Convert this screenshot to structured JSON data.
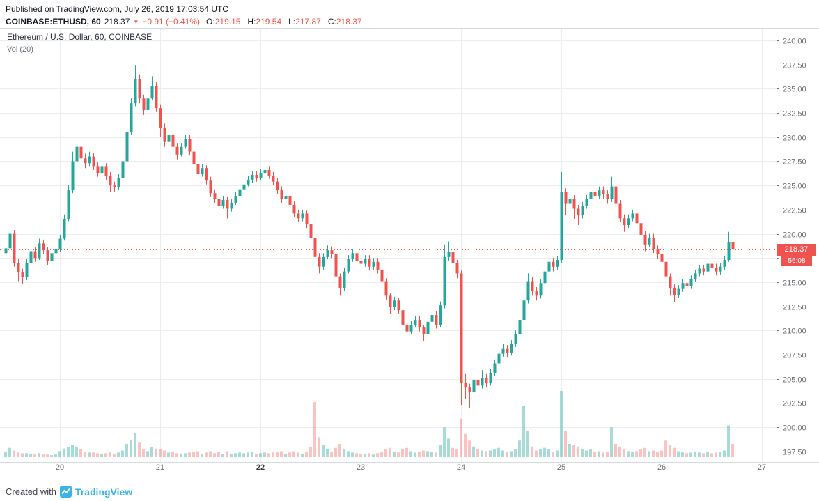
{
  "page": {
    "published_line": "Published on TradingView.com, July 26, 2019 17:03:54 UTC",
    "footer_created_with": "Created with",
    "footer_brand": "TradingView"
  },
  "symbol_bar": {
    "symbol": "COINBASE:ETHUSD, 60",
    "last": "218.37",
    "direction_icon": "▼",
    "change": "−0.91 (−0.41%)",
    "open_label": "O:",
    "open": "219.15",
    "high_label": "H:",
    "high": "219.54",
    "low_label": "L:",
    "low": "217.87",
    "close_label": "C:",
    "close": "218.37"
  },
  "legend": {
    "series_title": "Ethereum / U.S. Dollar, 60, COINBASE",
    "indicator_label": "Vol (20)"
  },
  "axis": {
    "price_badge": "218.37",
    "countdown_badge": "56:08"
  },
  "colors": {
    "up": "#26a69a",
    "down": "#ef5350",
    "volume_up": "rgba(38,166,154,0.40)",
    "volume_down": "rgba(239,83,80,0.35)",
    "grid": "#ebedf0",
    "frame": "#d6d9dd",
    "axis_text": "#6a6e77",
    "axis_text_bold": "#35383f",
    "badge_bg": "#ef5350",
    "brand_blue": "#3bb3e4"
  },
  "chart_data": {
    "type": "candlestick",
    "title": "Ethereum / U.S. Dollar, 60, COINBASE",
    "exchange": "COINBASE",
    "symbol": "ETHUSD",
    "interval_minutes": 60,
    "volume_indicator": "Vol (20)",
    "last_price": 218.37,
    "countdown": "56:08",
    "y_axis": {
      "range": [
        196.4,
        241.3
      ],
      "ticks": [
        197.5,
        200,
        202.5,
        205,
        207.5,
        210,
        212.5,
        215,
        217.5,
        220,
        222.5,
        225,
        227.5,
        230,
        232.5,
        235,
        237.5,
        240
      ]
    },
    "x_labels": [
      {
        "label": "20",
        "candle_index": 13
      },
      {
        "label": "21",
        "candle_index": 37
      },
      {
        "label": "22",
        "candle_index": 61,
        "bold": true
      },
      {
        "label": "23",
        "candle_index": 85
      },
      {
        "label": "24",
        "candle_index": 109
      },
      {
        "label": "25",
        "candle_index": 133
      },
      {
        "label": "26",
        "candle_index": 157
      },
      {
        "label": "27",
        "candle_index": 181
      }
    ],
    "candle_format": [
      "open",
      "high",
      "low",
      "close",
      "volume_pct"
    ],
    "candles": [
      [
        218.0,
        219.0,
        217.6,
        218.5,
        8
      ],
      [
        218.5,
        224.0,
        218.2,
        220.0,
        14
      ],
      [
        220.0,
        220.4,
        216.6,
        217.0,
        10
      ],
      [
        217.0,
        217.4,
        215.1,
        216.0,
        7
      ],
      [
        216.0,
        216.4,
        214.8,
        215.5,
        6
      ],
      [
        215.5,
        217.4,
        215.2,
        217.0,
        6
      ],
      [
        217.0,
        218.7,
        216.8,
        218.2,
        5
      ],
      [
        218.2,
        218.6,
        217.1,
        217.5,
        4
      ],
      [
        217.5,
        219.5,
        217.3,
        219.0,
        6
      ],
      [
        219.0,
        219.4,
        217.9,
        218.3,
        4
      ],
      [
        218.3,
        218.6,
        216.8,
        217.2,
        4
      ],
      [
        217.2,
        218.4,
        217.0,
        218.0,
        3
      ],
      [
        218.0,
        218.9,
        217.7,
        218.4,
        4
      ],
      [
        218.4,
        219.9,
        218.1,
        219.5,
        9
      ],
      [
        219.5,
        222.0,
        219.3,
        221.5,
        13
      ],
      [
        221.5,
        225.0,
        221.3,
        224.5,
        15
      ],
      [
        224.5,
        228.5,
        224.2,
        227.5,
        18
      ],
      [
        227.5,
        230.2,
        227.2,
        229.0,
        16
      ],
      [
        229.0,
        229.6,
        227.3,
        227.8,
        12
      ],
      [
        227.8,
        228.3,
        226.8,
        227.3,
        8
      ],
      [
        227.3,
        228.5,
        227.0,
        228.0,
        7
      ],
      [
        228.0,
        228.4,
        226.6,
        227.0,
        7
      ],
      [
        227.0,
        227.4,
        225.9,
        226.3,
        6
      ],
      [
        226.3,
        227.5,
        226.0,
        227.0,
        5
      ],
      [
        227.0,
        227.3,
        225.6,
        226.0,
        6
      ],
      [
        226.0,
        226.4,
        224.3,
        225.0,
        8
      ],
      [
        225.0,
        225.4,
        224.3,
        224.8,
        5
      ],
      [
        224.8,
        226.2,
        224.5,
        225.8,
        7
      ],
      [
        225.8,
        228.0,
        225.6,
        227.5,
        10
      ],
      [
        227.5,
        231.0,
        227.3,
        230.5,
        20
      ],
      [
        230.5,
        234.0,
        230.2,
        233.5,
        26
      ],
      [
        233.5,
        237.4,
        233.2,
        236.0,
        36
      ],
      [
        236.0,
        236.5,
        233.5,
        234.0,
        22
      ],
      [
        234.0,
        234.4,
        232.3,
        232.8,
        12
      ],
      [
        232.8,
        234.5,
        232.5,
        234.0,
        9
      ],
      [
        234.0,
        236.3,
        233.8,
        235.3,
        15
      ],
      [
        235.3,
        235.7,
        232.6,
        233.0,
        13
      ],
      [
        233.0,
        233.4,
        230.0,
        231.0,
        12
      ],
      [
        231.0,
        231.4,
        229.0,
        229.5,
        10
      ],
      [
        229.5,
        230.7,
        229.2,
        230.2,
        7
      ],
      [
        230.2,
        230.6,
        228.2,
        229.0,
        8
      ],
      [
        229.0,
        229.4,
        227.7,
        228.2,
        6
      ],
      [
        228.2,
        229.4,
        228.0,
        229.0,
        5
      ],
      [
        229.0,
        230.2,
        228.8,
        229.8,
        6
      ],
      [
        229.8,
        230.2,
        228.1,
        228.5,
        7
      ],
      [
        228.5,
        228.9,
        226.8,
        227.2,
        8
      ],
      [
        227.2,
        227.6,
        225.5,
        226.2,
        9
      ],
      [
        226.2,
        227.2,
        225.9,
        226.8,
        5
      ],
      [
        226.8,
        227.1,
        225.1,
        225.5,
        7
      ],
      [
        225.5,
        225.9,
        223.8,
        224.2,
        9
      ],
      [
        224.2,
        224.6,
        223.2,
        223.6,
        6
      ],
      [
        223.6,
        224.0,
        222.2,
        222.9,
        8
      ],
      [
        222.9,
        223.9,
        222.6,
        223.5,
        5
      ],
      [
        223.5,
        223.8,
        221.6,
        222.6,
        9
      ],
      [
        222.6,
        223.6,
        222.3,
        223.2,
        5
      ],
      [
        223.2,
        224.3,
        223.0,
        223.9,
        6
      ],
      [
        223.9,
        225.0,
        223.7,
        224.6,
        7
      ],
      [
        224.6,
        225.5,
        224.3,
        225.1,
        6
      ],
      [
        225.1,
        226.0,
        224.9,
        225.6,
        7
      ],
      [
        225.6,
        226.5,
        225.3,
        226.1,
        8
      ],
      [
        226.1,
        226.5,
        225.4,
        225.8,
        5
      ],
      [
        225.8,
        226.7,
        225.5,
        226.3,
        6
      ],
      [
        226.3,
        227.2,
        226.1,
        226.6,
        7
      ],
      [
        226.6,
        227.0,
        225.7,
        226.0,
        6
      ],
      [
        226.0,
        226.4,
        225.0,
        225.4,
        7
      ],
      [
        225.4,
        225.8,
        224.1,
        224.5,
        8
      ],
      [
        224.5,
        224.9,
        223.2,
        223.6,
        9
      ],
      [
        223.6,
        224.3,
        223.3,
        223.9,
        5
      ],
      [
        223.9,
        224.2,
        222.6,
        223.0,
        7
      ],
      [
        223.0,
        223.4,
        221.7,
        222.1,
        9
      ],
      [
        222.1,
        222.5,
        221.2,
        221.6,
        7
      ],
      [
        221.6,
        222.5,
        221.3,
        222.1,
        5
      ],
      [
        222.1,
        222.4,
        220.6,
        221.0,
        8
      ],
      [
        221.0,
        221.4,
        219.1,
        219.6,
        15
      ],
      [
        219.6,
        219.9,
        216.5,
        217.6,
        83
      ],
      [
        217.6,
        218.0,
        215.9,
        216.6,
        30
      ],
      [
        216.6,
        218.0,
        216.3,
        217.6,
        18
      ],
      [
        217.6,
        218.8,
        217.4,
        218.3,
        12
      ],
      [
        218.3,
        218.7,
        217.5,
        217.9,
        8
      ],
      [
        217.9,
        218.2,
        215.2,
        215.6,
        14
      ],
      [
        215.6,
        215.9,
        213.6,
        214.4,
        20
      ],
      [
        214.4,
        216.5,
        214.1,
        216.1,
        12
      ],
      [
        216.1,
        217.8,
        215.9,
        217.4,
        9
      ],
      [
        217.4,
        218.4,
        217.1,
        218.0,
        7
      ],
      [
        218.0,
        218.4,
        216.9,
        217.2,
        6
      ],
      [
        217.2,
        217.6,
        216.5,
        216.9,
        5
      ],
      [
        216.9,
        217.8,
        216.6,
        217.4,
        5
      ],
      [
        217.4,
        217.8,
        216.2,
        216.6,
        6
      ],
      [
        216.6,
        217.5,
        216.3,
        217.1,
        4
      ],
      [
        217.1,
        217.5,
        215.9,
        216.3,
        6
      ],
      [
        216.3,
        216.6,
        214.7,
        215.1,
        8
      ],
      [
        215.1,
        215.4,
        213.2,
        213.6,
        12
      ],
      [
        213.6,
        213.9,
        211.7,
        212.4,
        14
      ],
      [
        212.4,
        213.5,
        212.1,
        213.1,
        8
      ],
      [
        213.1,
        213.4,
        211.7,
        212.1,
        7
      ],
      [
        212.1,
        212.4,
        210.2,
        210.6,
        12
      ],
      [
        210.6,
        210.9,
        209.2,
        209.9,
        14
      ],
      [
        209.9,
        211.0,
        209.6,
        210.6,
        9
      ],
      [
        210.6,
        211.5,
        210.3,
        211.1,
        7
      ],
      [
        211.1,
        211.5,
        209.9,
        210.3,
        8
      ],
      [
        210.3,
        210.6,
        208.9,
        209.6,
        10
      ],
      [
        209.6,
        211.3,
        209.3,
        210.9,
        9
      ],
      [
        210.9,
        212.0,
        210.6,
        211.6,
        8
      ],
      [
        211.6,
        212.0,
        210.2,
        210.6,
        7
      ],
      [
        210.6,
        213.0,
        210.3,
        212.6,
        18
      ],
      [
        212.6,
        218.9,
        212.3,
        217.6,
        45
      ],
      [
        217.6,
        219.2,
        217.2,
        218.1,
        28
      ],
      [
        218.1,
        218.5,
        216.6,
        217.0,
        14
      ],
      [
        217.0,
        217.3,
        215.4,
        215.9,
        12
      ],
      [
        215.9,
        216.2,
        202.3,
        204.6,
        58
      ],
      [
        204.6,
        205.5,
        202.9,
        204.1,
        35
      ],
      [
        204.1,
        204.5,
        202.0,
        203.6,
        25
      ],
      [
        203.6,
        205.3,
        203.3,
        204.9,
        16
      ],
      [
        204.9,
        205.3,
        203.8,
        204.3,
        12
      ],
      [
        204.3,
        205.9,
        204.0,
        205.1,
        10
      ],
      [
        205.1,
        205.5,
        204.1,
        204.6,
        9
      ],
      [
        204.6,
        206.0,
        204.3,
        205.6,
        10
      ],
      [
        205.6,
        207.0,
        205.3,
        206.6,
        12
      ],
      [
        206.6,
        208.3,
        206.3,
        207.6,
        14
      ],
      [
        207.6,
        208.6,
        207.3,
        208.1,
        10
      ],
      [
        208.1,
        208.5,
        207.2,
        207.7,
        8
      ],
      [
        207.7,
        209.0,
        207.4,
        208.6,
        9
      ],
      [
        208.6,
        210.0,
        208.3,
        209.6,
        12
      ],
      [
        209.6,
        211.5,
        209.3,
        211.1,
        25
      ],
      [
        211.1,
        213.5,
        210.8,
        213.1,
        78
      ],
      [
        213.1,
        215.9,
        212.8,
        215.1,
        40
      ],
      [
        215.1,
        215.5,
        213.6,
        214.1,
        16
      ],
      [
        214.1,
        214.5,
        213.1,
        213.6,
        10
      ],
      [
        213.6,
        215.3,
        213.3,
        214.9,
        12
      ],
      [
        214.9,
        216.5,
        214.6,
        216.1,
        14
      ],
      [
        216.1,
        217.6,
        215.8,
        217.1,
        12
      ],
      [
        217.1,
        217.5,
        216.1,
        216.6,
        8
      ],
      [
        216.6,
        217.7,
        216.3,
        217.3,
        10
      ],
      [
        217.3,
        226.4,
        217.0,
        224.3,
        100
      ],
      [
        224.3,
        224.7,
        221.9,
        223.1,
        40
      ],
      [
        223.1,
        224.0,
        222.8,
        223.6,
        20
      ],
      [
        223.6,
        224.0,
        221.5,
        222.6,
        18
      ],
      [
        222.6,
        223.0,
        220.9,
        221.9,
        16
      ],
      [
        221.9,
        223.3,
        221.6,
        222.9,
        12
      ],
      [
        222.9,
        224.0,
        222.6,
        223.6,
        10
      ],
      [
        223.6,
        224.9,
        223.3,
        224.3,
        12
      ],
      [
        224.3,
        224.7,
        223.4,
        223.9,
        8
      ],
      [
        223.9,
        224.9,
        223.6,
        224.5,
        9
      ],
      [
        224.5,
        224.9,
        223.6,
        224.1,
        7
      ],
      [
        224.1,
        224.5,
        223.1,
        223.6,
        8
      ],
      [
        223.6,
        225.9,
        223.3,
        224.9,
        45
      ],
      [
        224.9,
        225.3,
        222.7,
        223.1,
        20
      ],
      [
        223.1,
        223.5,
        221.2,
        221.6,
        16
      ],
      [
        221.6,
        222.0,
        220.2,
        220.9,
        12
      ],
      [
        220.9,
        222.0,
        220.6,
        221.6,
        9
      ],
      [
        221.6,
        222.5,
        221.3,
        222.1,
        8
      ],
      [
        222.1,
        222.5,
        220.7,
        221.1,
        9
      ],
      [
        221.1,
        221.4,
        219.2,
        219.9,
        12
      ],
      [
        219.9,
        220.3,
        218.2,
        218.9,
        14
      ],
      [
        218.9,
        220.0,
        218.6,
        219.6,
        9
      ],
      [
        219.6,
        220.0,
        218.0,
        218.4,
        10
      ],
      [
        218.4,
        218.8,
        217.4,
        217.9,
        8
      ],
      [
        217.9,
        218.3,
        216.6,
        217.1,
        10
      ],
      [
        217.1,
        217.4,
        214.9,
        215.6,
        25
      ],
      [
        215.6,
        215.9,
        213.6,
        214.4,
        18
      ],
      [
        214.4,
        214.8,
        212.9,
        213.7,
        14
      ],
      [
        213.7,
        214.7,
        213.4,
        214.3,
        9
      ],
      [
        214.3,
        215.3,
        214.0,
        214.9,
        8
      ],
      [
        214.9,
        215.3,
        214.2,
        214.6,
        6
      ],
      [
        214.6,
        215.7,
        214.3,
        215.3,
        7
      ],
      [
        215.3,
        216.3,
        215.0,
        215.9,
        8
      ],
      [
        215.9,
        216.8,
        215.6,
        216.4,
        7
      ],
      [
        216.4,
        216.8,
        215.7,
        216.1,
        6
      ],
      [
        216.1,
        217.3,
        215.8,
        216.9,
        8
      ],
      [
        216.9,
        217.3,
        216.1,
        216.5,
        6
      ],
      [
        216.5,
        216.9,
        215.7,
        216.1,
        7
      ],
      [
        216.1,
        217.0,
        215.8,
        216.6,
        8
      ],
      [
        216.6,
        217.7,
        216.3,
        217.3,
        10
      ],
      [
        217.3,
        220.2,
        217.1,
        219.15,
        48
      ],
      [
        219.15,
        219.54,
        217.87,
        218.37,
        20
      ]
    ]
  }
}
